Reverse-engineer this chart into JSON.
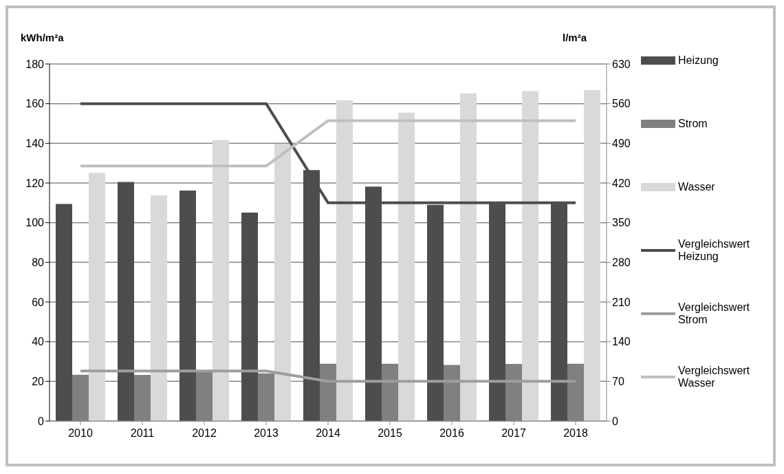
{
  "chart_data": {
    "type": "bar",
    "ylabel": "kWh/m²a",
    "y2label": "l/m²a",
    "categories": [
      "2010",
      "2011",
      "2012",
      "2013",
      "2014",
      "2015",
      "2016",
      "2017",
      "2018"
    ],
    "series": [
      {
        "name": "Heizung",
        "color": "#4d4d4d",
        "values": [
          109.4,
          120.5,
          116.2,
          105.1,
          126.5,
          118.2,
          109,
          110,
          110
        ]
      },
      {
        "name": "Strom",
        "color": "#808080",
        "values": [
          23.3,
          23.2,
          25.5,
          24,
          28.9,
          28.9,
          28.3,
          28.8,
          28.9
        ]
      },
      {
        "name": "Wasser",
        "axis": "y2",
        "color": "#d9d9d9",
        "values": [
          438,
          398,
          496,
          489,
          566,
          544,
          578,
          582,
          584
        ]
      },
      {
        "name": "Vergleichswert Heizung",
        "type": "line",
        "color": "#4d4d4d",
        "values": [
          160,
          160,
          160,
          160,
          110,
          110,
          110,
          110,
          110
        ]
      },
      {
        "name": "Vergleichswert Strom",
        "type": "line",
        "color": "#9e9e9e",
        "values": [
          25.2,
          25.2,
          25.2,
          25.2,
          20,
          20,
          20,
          20,
          20
        ]
      },
      {
        "name": "Vergleichswert Wasser",
        "type": "line",
        "axis": "y2",
        "color": "#bfbfbf",
        "values": [
          450,
          450,
          450,
          450,
          530,
          530,
          530,
          530,
          530
        ]
      }
    ],
    "ylim": [
      0,
      180
    ],
    "yticks": [
      0,
      20,
      40,
      60,
      80,
      100,
      120,
      140,
      160,
      180
    ],
    "y2lim": [
      0,
      630
    ],
    "y2ticks": [
      0,
      70,
      140,
      210,
      280,
      350,
      420,
      490,
      560,
      630
    ],
    "grid": "y",
    "legend": "right",
    "marker": "none",
    "line_style": "solid"
  }
}
